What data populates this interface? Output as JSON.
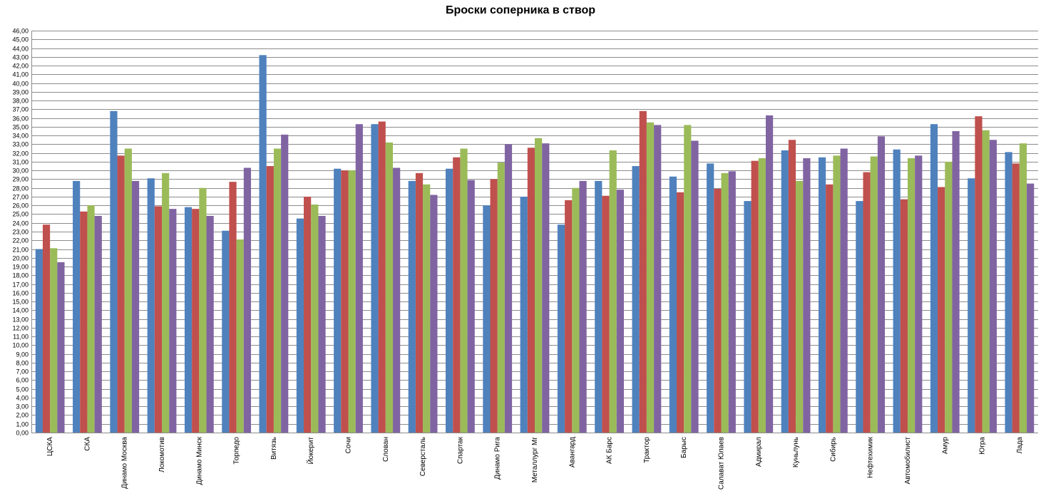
{
  "chart_data": {
    "type": "bar",
    "title": "Броски соперника в створ",
    "xlabel": "",
    "ylabel": "",
    "ylim": [
      0,
      46
    ],
    "y_tick_step": 1,
    "grid": true,
    "legend": "none",
    "categories": [
      "ЦСКА",
      "СКА",
      "Динамо Москва",
      "Локомотив",
      "Динамо Минск",
      "Торпедо",
      "Витязь",
      "Йокерит",
      "Сочи",
      "Слован",
      "Северсталь",
      "Спартак",
      "Динамо Рига",
      "Металлург Мг",
      "Авангард",
      "АК Барс",
      "Трактор",
      "Барыс",
      "Салават Юлаев",
      "Адмирал",
      "Куньлунь",
      "Сибирь",
      "Нефтехимик",
      "Автомобилист",
      "Амур",
      "Югра",
      "Лада"
    ],
    "series": [
      {
        "color": "#4f81bd",
        "values": [
          21.0,
          28.8,
          36.8,
          29.1,
          25.8,
          23.1,
          43.2,
          24.5,
          30.2,
          35.3,
          28.8,
          30.2,
          26.0,
          27.0,
          23.8,
          28.8,
          30.5,
          29.3,
          30.8,
          26.5,
          32.3,
          31.5,
          26.5,
          32.4,
          35.3,
          29.1,
          32.1
        ]
      },
      {
        "color": "#c0504d",
        "values": [
          23.8,
          25.3,
          31.7,
          25.9,
          25.6,
          28.7,
          30.5,
          27.0,
          30.0,
          35.6,
          29.7,
          31.5,
          29.0,
          32.6,
          26.6,
          27.1,
          36.8,
          27.5,
          27.9,
          31.1,
          33.5,
          28.4,
          29.8,
          26.7,
          28.1,
          36.2,
          30.8
        ]
      },
      {
        "color": "#9bbb59",
        "values": [
          21.1,
          26.0,
          32.5,
          29.7,
          28.0,
          22.1,
          32.5,
          26.1,
          30.0,
          33.2,
          28.4,
          32.5,
          30.9,
          33.7,
          28.0,
          32.3,
          35.5,
          35.2,
          29.7,
          31.4,
          28.8,
          31.7,
          31.6,
          31.4,
          31.0,
          34.6,
          33.1
        ]
      },
      {
        "color": "#8064a2",
        "values": [
          19.5,
          24.8,
          28.8,
          25.6,
          24.8,
          30.3,
          34.1,
          24.8,
          35.3,
          30.3,
          27.2,
          28.9,
          33.0,
          33.1,
          28.8,
          27.8,
          35.2,
          33.4,
          29.9,
          36.3,
          31.4,
          32.5,
          33.9,
          31.7,
          34.5,
          33.5,
          28.5
        ]
      }
    ]
  }
}
